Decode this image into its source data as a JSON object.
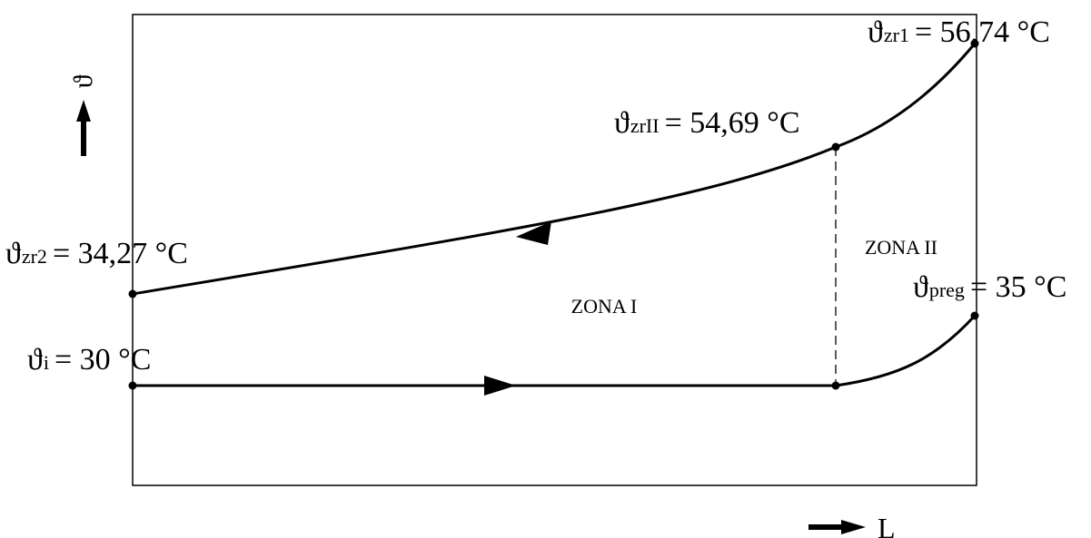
{
  "axes": {
    "y_symbol": "ϑ",
    "x_symbol": "L"
  },
  "zones": {
    "zone_1": "ZONA I",
    "zone_2": "ZONA II"
  },
  "points": {
    "zr1": {
      "symbol": "ϑ",
      "subscript": "zr1",
      "value": "= 56,74 °C"
    },
    "zrII": {
      "symbol": "ϑ",
      "subscript": "zrII",
      "value": "= 54,69 °C"
    },
    "zr2": {
      "symbol": "ϑ",
      "subscript": "zr2",
      "value": "= 34,27 °C"
    },
    "preg": {
      "symbol": "ϑ",
      "subscript": "preg",
      "value": "= 35 °C"
    },
    "i": {
      "symbol": "ϑ",
      "subscript": "i",
      "value": "= 30 °C"
    }
  },
  "colors": {
    "line": "#000000",
    "background": "#ffffff"
  }
}
